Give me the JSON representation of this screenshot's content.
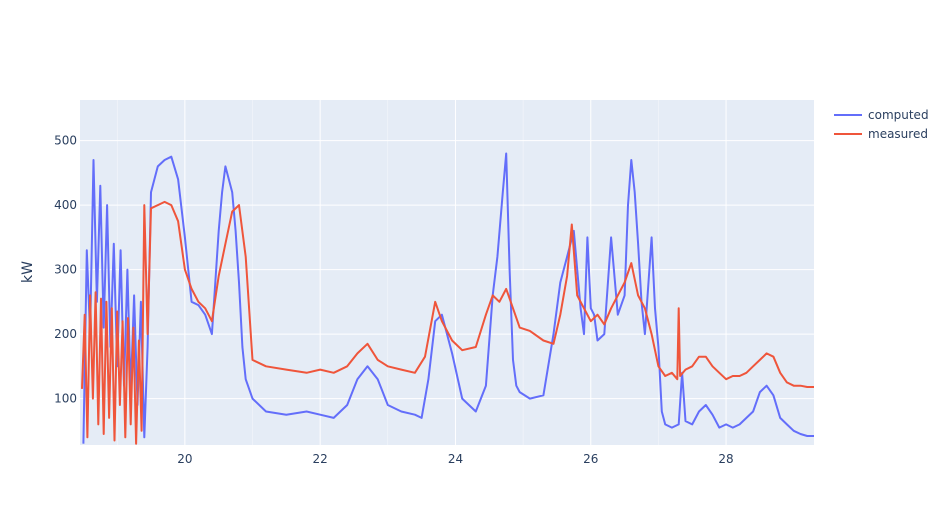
{
  "chart_data": {
    "type": "line",
    "title": "",
    "xlabel": "",
    "ylabel": "kW",
    "xlim": [
      18.45,
      29.3
    ],
    "ylim": [
      28,
      563
    ],
    "x_ticks": [
      20,
      22,
      24,
      26,
      28
    ],
    "y_ticks": [
      100,
      200,
      300,
      400,
      500
    ],
    "grid": true,
    "legend_position": "top-right",
    "colors": {
      "plot_bg": "#e5ecf6",
      "grid": "#ffffff",
      "text": "#2a3f5f"
    },
    "series": [
      {
        "name": "computed",
        "color": "#636efa",
        "x": [
          18.5,
          18.55,
          18.6,
          18.65,
          18.7,
          18.75,
          18.8,
          18.85,
          18.9,
          18.95,
          19.0,
          19.05,
          19.1,
          19.15,
          19.2,
          19.25,
          19.3,
          19.35,
          19.4,
          19.45,
          19.5,
          19.6,
          19.7,
          19.8,
          19.9,
          20.0,
          20.1,
          20.2,
          20.3,
          20.4,
          20.5,
          20.55,
          20.6,
          20.65,
          20.7,
          20.75,
          20.8,
          20.85,
          20.9,
          21.0,
          21.2,
          21.5,
          21.8,
          22.0,
          22.2,
          22.4,
          22.55,
          22.7,
          22.85,
          23.0,
          23.2,
          23.4,
          23.5,
          23.6,
          23.7,
          23.8,
          23.95,
          24.1,
          24.3,
          24.45,
          24.55,
          24.62,
          24.7,
          24.75,
          24.8,
          24.85,
          24.9,
          24.95,
          25.1,
          25.3,
          25.45,
          25.55,
          25.65,
          25.75,
          25.8,
          25.85,
          25.9,
          25.95,
          26.0,
          26.05,
          26.1,
          26.2,
          26.3,
          26.4,
          26.5,
          26.55,
          26.6,
          26.65,
          26.7,
          26.75,
          26.8,
          26.9,
          26.95,
          27.0,
          27.05,
          27.1,
          27.2,
          27.3,
          27.35,
          27.4,
          27.5,
          27.6,
          27.7,
          27.8,
          27.9,
          28.0,
          28.1,
          28.2,
          28.3,
          28.4,
          28.5,
          28.6,
          28.7,
          28.8,
          28.9,
          29.0,
          29.1,
          29.2,
          29.3
        ],
        "values": [
          30,
          330,
          200,
          470,
          250,
          430,
          210,
          400,
          180,
          340,
          150,
          330,
          120,
          300,
          110,
          260,
          90,
          250,
          40,
          180,
          420,
          460,
          470,
          475,
          440,
          350,
          250,
          245,
          230,
          200,
          360,
          420,
          460,
          440,
          420,
          360,
          280,
          180,
          130,
          100,
          80,
          75,
          80,
          75,
          70,
          90,
          130,
          150,
          130,
          90,
          80,
          75,
          70,
          130,
          220,
          230,
          170,
          100,
          80,
          120,
          260,
          320,
          420,
          480,
          300,
          160,
          120,
          110,
          100,
          105,
          200,
          280,
          320,
          360,
          300,
          240,
          200,
          350,
          240,
          230,
          190,
          200,
          350,
          230,
          260,
          400,
          470,
          420,
          340,
          250,
          200,
          350,
          240,
          180,
          80,
          60,
          55,
          60,
          140,
          65,
          60,
          80,
          90,
          75,
          55,
          60,
          55,
          60,
          70,
          80,
          110,
          120,
          105,
          70,
          60,
          50,
          45,
          42,
          42
        ]
      },
      {
        "name": "measured",
        "color": "#ef553b",
        "x": [
          18.48,
          18.52,
          18.56,
          18.6,
          18.64,
          18.68,
          18.72,
          18.76,
          18.8,
          18.84,
          18.88,
          18.92,
          18.96,
          19.0,
          19.04,
          19.08,
          19.12,
          19.16,
          19.2,
          19.24,
          19.28,
          19.32,
          19.36,
          19.4,
          19.45,
          19.5,
          19.6,
          19.7,
          19.8,
          19.9,
          20.0,
          20.1,
          20.2,
          20.3,
          20.4,
          20.5,
          20.6,
          20.7,
          20.8,
          20.9,
          21.0,
          21.2,
          21.5,
          21.8,
          22.0,
          22.2,
          22.4,
          22.55,
          22.7,
          22.85,
          23.0,
          23.2,
          23.4,
          23.55,
          23.7,
          23.8,
          23.95,
          24.1,
          24.3,
          24.45,
          24.55,
          24.65,
          24.75,
          24.85,
          24.95,
          25.1,
          25.3,
          25.45,
          25.55,
          25.65,
          25.72,
          25.8,
          25.9,
          26.0,
          26.1,
          26.2,
          26.3,
          26.4,
          26.5,
          26.6,
          26.7,
          26.8,
          26.9,
          27.0,
          27.1,
          27.2,
          27.28,
          27.3,
          27.32,
          27.4,
          27.5,
          27.6,
          27.7,
          27.8,
          27.9,
          28.0,
          28.1,
          28.2,
          28.3,
          28.4,
          28.5,
          28.6,
          28.7,
          28.8,
          28.9,
          29.0,
          29.1,
          29.2,
          29.3
        ],
        "values": [
          115,
          230,
          40,
          260,
          100,
          265,
          60,
          255,
          45,
          250,
          70,
          240,
          35,
          235,
          90,
          220,
          40,
          225,
          60,
          210,
          30,
          190,
          50,
          400,
          200,
          395,
          400,
          405,
          400,
          375,
          300,
          270,
          250,
          240,
          220,
          290,
          340,
          390,
          400,
          320,
          160,
          150,
          145,
          140,
          145,
          140,
          150,
          170,
          185,
          160,
          150,
          145,
          140,
          165,
          250,
          220,
          190,
          175,
          180,
          230,
          260,
          250,
          270,
          240,
          210,
          205,
          190,
          185,
          230,
          290,
          370,
          260,
          240,
          220,
          230,
          215,
          240,
          260,
          280,
          310,
          260,
          240,
          200,
          150,
          135,
          140,
          130,
          240,
          135,
          145,
          150,
          165,
          165,
          150,
          140,
          130,
          135,
          135,
          140,
          150,
          160,
          170,
          165,
          140,
          125,
          120,
          120,
          118,
          118
        ]
      }
    ]
  }
}
